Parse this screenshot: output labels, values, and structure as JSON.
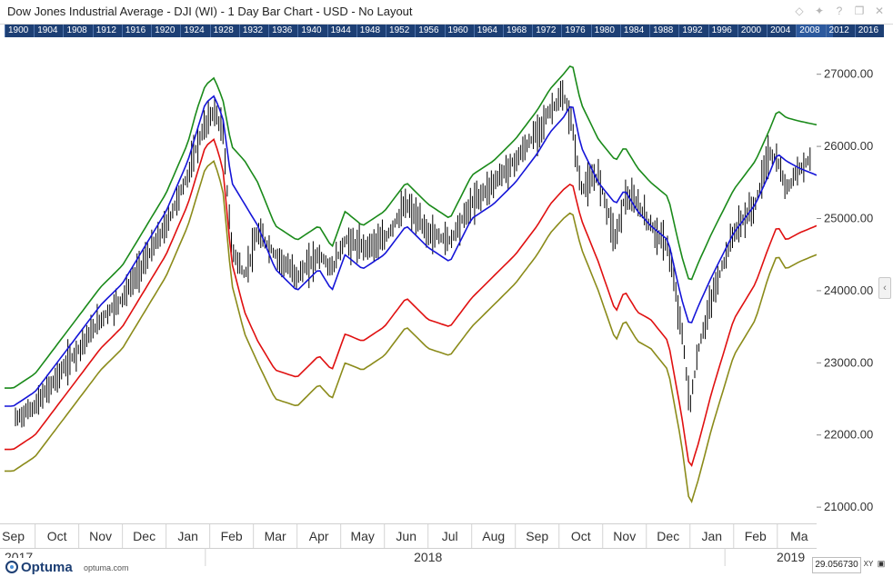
{
  "window": {
    "title": "Dow Jones Industrial Average - DJI (WI) - 1 Day Bar Chart - USD - No Layout",
    "icons": [
      "diamond-icon",
      "pin-icon",
      "help-icon",
      "restore-icon",
      "close-icon"
    ]
  },
  "overview_years": [
    "1900",
    "1904",
    "1908",
    "1912",
    "1916",
    "1920",
    "1924",
    "1928",
    "1932",
    "1936",
    "1940",
    "1944",
    "1948",
    "1952",
    "1956",
    "1960",
    "1964",
    "1968",
    "1972",
    "1976",
    "1980",
    "1984",
    "1988",
    "1992",
    "1996",
    "2000",
    "2004",
    "2008",
    "2012",
    "2016"
  ],
  "footer": {
    "brand": "Optuma",
    "url": "optuma.com",
    "readout": "29.056730",
    "xy_label": "XY"
  },
  "colors": {
    "accent": "#1d3f74",
    "bars": "#000000",
    "upper_outer": "#1a8a1a",
    "upper_inner": "#1515d8",
    "lower_inner": "#e01010",
    "lower_outer": "#8b8b1a"
  },
  "chart_data": {
    "type": "line",
    "bar_type": "ohlc-bars",
    "symbol": "DJI",
    "title": "",
    "xlabel": "",
    "ylabel": "",
    "y_axis_position": "right",
    "ylim": [
      20800,
      27500
    ],
    "y_ticks": [
      "27000.00",
      "26000.00",
      "25000.00",
      "24000.00",
      "23000.00",
      "22000.00",
      "21000.00"
    ],
    "x_months": [
      "Sep",
      "Oct",
      "Nov",
      "Dec",
      "Jan",
      "Feb",
      "Mar",
      "Apr",
      "May",
      "Jun",
      "Jul",
      "Aug",
      "Sep",
      "Oct",
      "Nov",
      "Dec",
      "Jan",
      "Feb",
      "Ma"
    ],
    "x_years": [
      "2017",
      "2018",
      "2019"
    ],
    "x_month_index": [
      0,
      1,
      2,
      3,
      4,
      5,
      6,
      7,
      8,
      9,
      10,
      11,
      12,
      13,
      14,
      15,
      16,
      17,
      18
    ],
    "x_range": [
      -0.2,
      18.4
    ],
    "grid": false,
    "legend": "none",
    "x": [
      0,
      0.5,
      1,
      1.5,
      2,
      2.5,
      3,
      3.5,
      4,
      4.2,
      4.4,
      4.6,
      4.8,
      5,
      5.3,
      5.6,
      6,
      6.5,
      7,
      7.3,
      7.6,
      8,
      8.5,
      9,
      9.5,
      10,
      10.5,
      11,
      11.5,
      12,
      12.3,
      12.6,
      12.8,
      13,
      13.4,
      13.8,
      14,
      14.3,
      14.6,
      15,
      15.3,
      15.5,
      15.7,
      16,
      16.5,
      17,
      17.3,
      17.5,
      17.7,
      18,
      18.4
    ],
    "series": [
      {
        "values": [
          22200,
          22400,
          22800,
          23200,
          23600,
          23900,
          24400,
          24900,
          25600,
          26000,
          26300,
          26500,
          26200,
          24600,
          24200,
          24800,
          24500,
          24200,
          24500,
          24300,
          24700,
          24600,
          24700,
          25200,
          24800,
          24700,
          25200,
          25500,
          25800,
          26200,
          26500,
          26700,
          26300,
          25400,
          25600,
          24700,
          25300,
          25200,
          24900,
          24600,
          23500,
          22400,
          23200,
          23900,
          24800,
          25200,
          25900,
          25800,
          25400,
          25700,
          25900
        ]
      },
      {
        "values": [
          22650,
          22850,
          23250,
          23650,
          24050,
          24350,
          24850,
          25350,
          26050,
          26500,
          26850,
          26950,
          26650,
          26000,
          25800,
          25500,
          24900,
          24700,
          24900,
          24600,
          25100,
          24900,
          25100,
          25500,
          25200,
          25000,
          25600,
          25800,
          26100,
          26500,
          26800,
          27000,
          27150,
          26600,
          26100,
          25800,
          26000,
          25700,
          25500,
          25300,
          24500,
          24100,
          24400,
          24800,
          25400,
          25800,
          26200,
          26500,
          26400,
          26350,
          26300
        ]
      },
      {
        "values": [
          22400,
          22600,
          23000,
          23400,
          23800,
          24100,
          24600,
          25100,
          25800,
          26200,
          26600,
          26700,
          26400,
          25500,
          25200,
          24900,
          24300,
          24000,
          24300,
          24000,
          24500,
          24300,
          24500,
          24900,
          24600,
          24400,
          25000,
          25200,
          25500,
          25900,
          26200,
          26400,
          26600,
          26000,
          25500,
          25200,
          25400,
          25100,
          24900,
          24700,
          23900,
          23500,
          23800,
          24200,
          24800,
          25200,
          25600,
          25900,
          25800,
          25700,
          25600
        ]
      },
      {
        "values": [
          21800,
          22000,
          22400,
          22800,
          23200,
          23500,
          24000,
          24500,
          25200,
          25600,
          26000,
          26100,
          25700,
          24400,
          23700,
          23300,
          22900,
          22800,
          23100,
          22900,
          23400,
          23300,
          23500,
          23900,
          23600,
          23500,
          23900,
          24200,
          24500,
          24900,
          25200,
          25400,
          25500,
          25000,
          24400,
          23700,
          24000,
          23700,
          23600,
          23300,
          22300,
          21500,
          21900,
          22600,
          23600,
          24100,
          24600,
          24900,
          24700,
          24800,
          24900
        ]
      },
      {
        "values": [
          21500,
          21700,
          22100,
          22500,
          22900,
          23200,
          23700,
          24200,
          24900,
          25300,
          25700,
          25800,
          25400,
          24100,
          23400,
          23000,
          22500,
          22400,
          22700,
          22500,
          23000,
          22900,
          23100,
          23500,
          23200,
          23100,
          23500,
          23800,
          24100,
          24500,
          24800,
          25000,
          25100,
          24600,
          24000,
          23300,
          23600,
          23300,
          23200,
          22900,
          21900,
          21000,
          21400,
          22100,
          23100,
          23600,
          24200,
          24500,
          24300,
          24400,
          24500
        ]
      }
    ]
  }
}
